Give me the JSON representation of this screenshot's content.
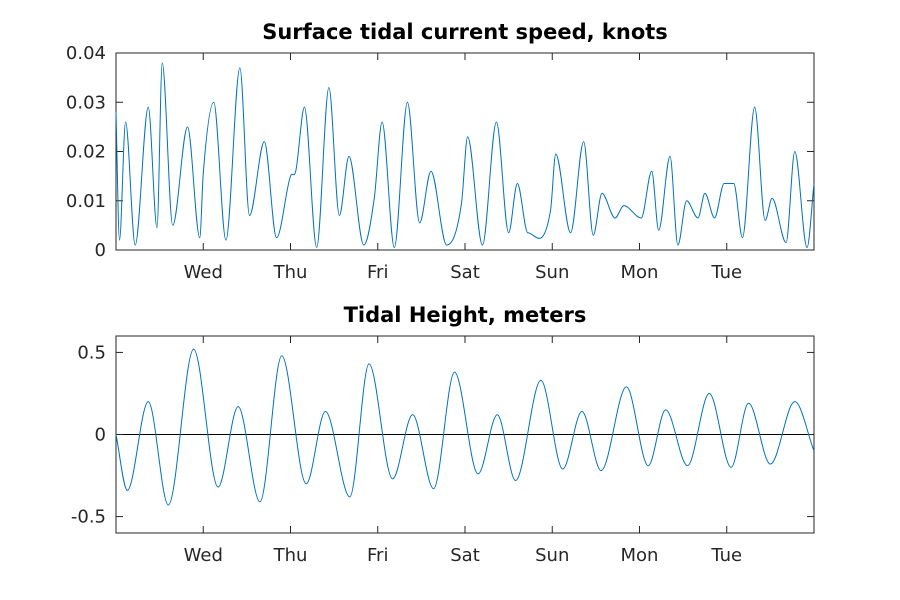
{
  "colors": {
    "series": "#0072bd",
    "axes": "#262626",
    "zero_line": "#000000"
  },
  "chart_data": [
    {
      "type": "line",
      "title": "Surface tidal current speed, knots",
      "xlabel": "",
      "ylabel": "",
      "xlim": [
        0,
        8
      ],
      "ylim": [
        0,
        0.04
      ],
      "grid": false,
      "legend": "none",
      "x_ticks": [
        {
          "x": 1,
          "label": "Wed"
        },
        {
          "x": 2,
          "label": "Thu"
        },
        {
          "x": 3,
          "label": "Fri"
        },
        {
          "x": 4,
          "label": "Sat"
        },
        {
          "x": 5,
          "label": "Sun"
        },
        {
          "x": 6,
          "label": "Mon"
        },
        {
          "x": 7,
          "label": "Tue"
        }
      ],
      "y_ticks": [
        {
          "y": 0,
          "label": "0"
        },
        {
          "y": 0.01,
          "label": "0.01"
        },
        {
          "y": 0.02,
          "label": "0.02"
        },
        {
          "y": 0.03,
          "label": "0.03"
        },
        {
          "y": 0.04,
          "label": "0.04"
        }
      ],
      "zero_line": false,
      "series": [
        {
          "x": [
            0,
            0.04,
            0.11,
            0.22,
            0.37,
            0.47,
            0.53,
            0.65,
            0.82,
            0.96,
            1.0,
            1.12,
            1.26,
            1.42,
            1.53,
            1.7,
            1.84,
            2.0,
            2.06,
            2.16,
            2.3,
            2.44,
            2.56,
            2.67,
            2.84,
            2.96,
            3.05,
            3.19,
            3.34,
            3.48,
            3.61,
            3.79,
            3.96,
            4.03,
            4.2,
            4.36,
            4.5,
            4.6,
            4.72,
            4.98,
            5.04,
            5.21,
            5.36,
            5.47,
            5.57,
            5.72,
            5.82,
            6.02,
            6.14,
            6.22,
            6.35,
            6.44,
            6.54,
            6.67,
            6.75,
            6.86,
            6.97,
            7.08,
            7.18,
            7.32,
            7.44,
            7.52,
            7.68,
            7.78,
            7.92,
            8.0
          ],
          "y": [
            0.028,
            0.002,
            0.026,
            0.001,
            0.029,
            0.0045,
            0.038,
            0.005,
            0.025,
            0.0025,
            0.0155,
            0.03,
            0.002,
            0.037,
            0.007,
            0.022,
            0.0025,
            0.015,
            0.016,
            0.029,
            0.0005,
            0.033,
            0.007,
            0.019,
            0.001,
            0.0105,
            0.026,
            0.0005,
            0.03,
            0.0055,
            0.016,
            0.001,
            0.0095,
            0.023,
            0.001,
            0.026,
            0.0035,
            0.0135,
            0.0035,
            0.008,
            0.0195,
            0.0035,
            0.022,
            0.003,
            0.0115,
            0.0065,
            0.009,
            0.0065,
            0.016,
            0.004,
            0.019,
            0.001,
            0.01,
            0.0065,
            0.0115,
            0.0065,
            0.0135,
            0.0135,
            0.0025,
            0.029,
            0.006,
            0.0105,
            0.0015,
            0.02,
            0.0005,
            0.0135
          ],
          "x_note": "",
          "y_note": ""
        }
      ]
    },
    {
      "type": "line",
      "title": "Tidal Height, meters",
      "xlabel": "",
      "ylabel": "",
      "xlim": [
        0,
        8
      ],
      "ylim": [
        -0.6,
        0.6
      ],
      "grid": false,
      "legend": "none",
      "x_ticks": [
        {
          "x": 1,
          "label": "Wed"
        },
        {
          "x": 2,
          "label": "Thu"
        },
        {
          "x": 3,
          "label": "Fri"
        },
        {
          "x": 4,
          "label": "Sat"
        },
        {
          "x": 5,
          "label": "Sun"
        },
        {
          "x": 6,
          "label": "Mon"
        },
        {
          "x": 7,
          "label": "Tue"
        }
      ],
      "y_ticks": [
        {
          "y": -0.5,
          "label": "-0.5"
        },
        {
          "y": 0,
          "label": "0"
        },
        {
          "y": 0.5,
          "label": "0.5"
        }
      ],
      "zero_line": true,
      "series": [
        {
          "x": [
            0,
            0.13,
            0.37,
            0.6,
            0.89,
            1.17,
            1.4,
            1.65,
            1.9,
            2.18,
            2.4,
            2.68,
            2.9,
            3.17,
            3.4,
            3.64,
            3.88,
            4.15,
            4.37,
            4.58,
            4.87,
            5.12,
            5.34,
            5.56,
            5.85,
            6.1,
            6.3,
            6.55,
            6.8,
            7.05,
            7.25,
            7.5,
            7.78,
            8.0
          ],
          "y": [
            0.0,
            -0.34,
            0.2,
            -0.43,
            0.52,
            -0.32,
            0.17,
            -0.41,
            0.48,
            -0.3,
            0.14,
            -0.38,
            0.43,
            -0.27,
            0.12,
            -0.33,
            0.38,
            -0.24,
            0.12,
            -0.28,
            0.33,
            -0.21,
            0.14,
            -0.22,
            0.29,
            -0.19,
            0.15,
            -0.19,
            0.25,
            -0.2,
            0.19,
            -0.18,
            0.2,
            -0.1
          ]
        }
      ]
    }
  ]
}
